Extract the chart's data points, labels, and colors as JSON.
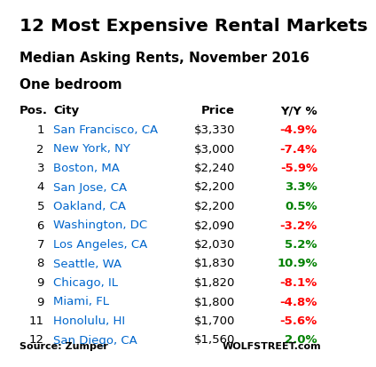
{
  "title1": "12 Most Expensive Rental Markets",
  "title2": "Median Asking Rents, November 2016",
  "title3": "One bedroom",
  "col_headers": [
    "Pos.",
    "City",
    "Price",
    "Y/Y %"
  ],
  "rows": [
    {
      "pos": "1",
      "city": "San Francisco, CA",
      "price": "$3,330",
      "yoy": "-4.9%",
      "yoy_color": "#ff0000"
    },
    {
      "pos": "2",
      "city": "New York, NY",
      "price": "$3,000",
      "yoy": "-7.4%",
      "yoy_color": "#ff0000"
    },
    {
      "pos": "3",
      "city": "Boston, MA",
      "price": "$2,240",
      "yoy": "-5.9%",
      "yoy_color": "#ff0000"
    },
    {
      "pos": "4",
      "city": "San Jose, CA",
      "price": "$2,200",
      "yoy": "3.3%",
      "yoy_color": "#008000"
    },
    {
      "pos": "5",
      "city": "Oakland, CA",
      "price": "$2,200",
      "yoy": "0.5%",
      "yoy_color": "#008000"
    },
    {
      "pos": "6",
      "city": "Washington, DC",
      "price": "$2,090",
      "yoy": "-3.2%",
      "yoy_color": "#ff0000"
    },
    {
      "pos": "7",
      "city": "Los Angeles, CA",
      "price": "$2,030",
      "yoy": "5.2%",
      "yoy_color": "#008000"
    },
    {
      "pos": "8",
      "city": "Seattle, WA",
      "price": "$1,830",
      "yoy": "10.9%",
      "yoy_color": "#008000"
    },
    {
      "pos": "9",
      "city": "Chicago, IL",
      "price": "$1,820",
      "yoy": "-8.1%",
      "yoy_color": "#ff0000"
    },
    {
      "pos": "9",
      "city": "Miami, FL",
      "price": "$1,800",
      "yoy": "-4.8%",
      "yoy_color": "#ff0000"
    },
    {
      "pos": "11",
      "city": "Honolulu, HI",
      "price": "$1,700",
      "yoy": "-5.6%",
      "yoy_color": "#ff0000"
    },
    {
      "pos": "12",
      "city": "San Diego, CA",
      "price": "$1,560",
      "yoy": "2.0%",
      "yoy_color": "#008000"
    }
  ],
  "city_color": "#0066cc",
  "header_color": "#000000",
  "pos_price_color": "#000000",
  "bg_color": "#ffffff",
  "source_left": "Source: Zumper",
  "source_right": "WOLFSTREET.com",
  "title1_fontsize": 14.5,
  "title2_fontsize": 11,
  "title3_fontsize": 11,
  "header_fontsize": 9.5,
  "data_fontsize": 9.5,
  "source_fontsize": 8
}
